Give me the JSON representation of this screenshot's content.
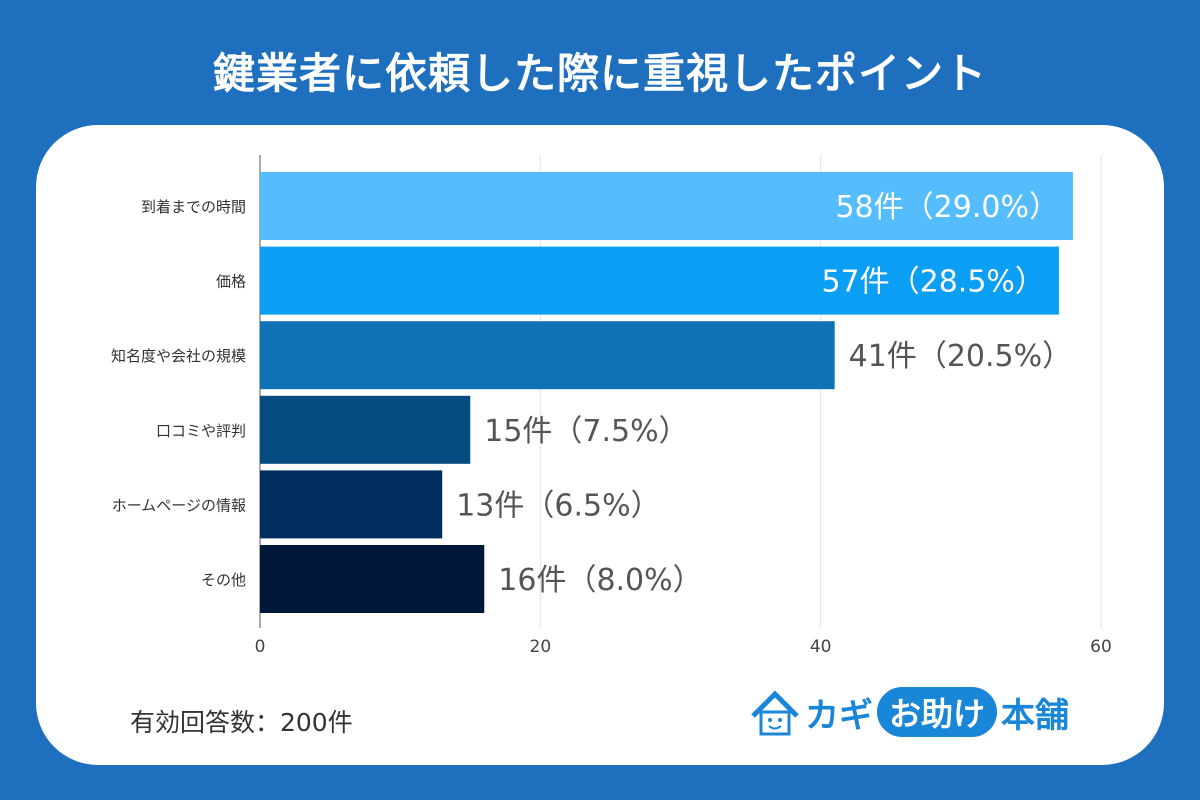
{
  "title": "鍵業者に依頼した際に重視したポイント",
  "note": "有効回答数：200件",
  "logo_text": "カギお助け本舗",
  "chart_data": {
    "type": "bar",
    "orientation": "horizontal",
    "categories": [
      "到着までの時間",
      "価格",
      "知名度や会社の規模",
      "口コミや評判",
      "ホームページの情報",
      "その他"
    ],
    "values": [
      58,
      57,
      41,
      15,
      13,
      16
    ],
    "data_labels": [
      "58件（29.0%）",
      "57件（28.5%）",
      "41件（20.5%）",
      "15件（7.5%）",
      "13件（6.5%）",
      "16件（8.0%）"
    ],
    "colors": [
      "#55bdfd",
      "#0a9ef5",
      "#0e72b5",
      "#044b7f",
      "#002f5f",
      "#00173a"
    ],
    "xlim": [
      0,
      60
    ],
    "xticks": [
      0,
      20,
      40,
      60
    ],
    "grid": true,
    "title": "鍵業者に依頼した際に重視したポイント"
  }
}
